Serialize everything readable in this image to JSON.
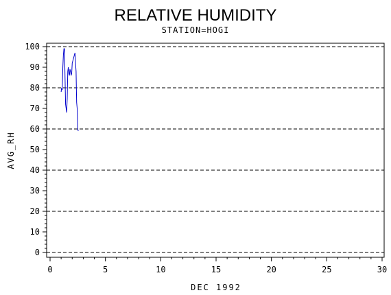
{
  "chart_data": {
    "type": "line",
    "title": "RELATIVE HUMIDITY",
    "subtitle": "STATION=HOGI",
    "xlabel": "DEC 1992",
    "ylabel": "AVG_RH",
    "xlim": [
      0,
      30
    ],
    "ylim": [
      0,
      100
    ],
    "x_ticks": [
      0,
      5,
      10,
      15,
      20,
      25,
      30
    ],
    "y_ticks": [
      0,
      10,
      20,
      30,
      40,
      50,
      60,
      70,
      80,
      90,
      100
    ],
    "grid_lines_y": [
      0,
      20,
      40,
      60,
      80,
      100
    ],
    "grid": "dashed horizontal",
    "line_color": "#0000cc",
    "series": [
      {
        "x": [
          1.0,
          1.05,
          1.1,
          1.15,
          1.2,
          1.25,
          1.3,
          1.35,
          1.4,
          1.45,
          1.5,
          1.55,
          1.6,
          1.65,
          1.7,
          1.75,
          1.8,
          1.85,
          1.9,
          1.95,
          2.0,
          2.05,
          2.1,
          2.15,
          2.2,
          2.25,
          2.3,
          2.35,
          2.4,
          2.45,
          2.5,
          2.55
        ],
        "y": [
          78,
          80,
          79,
          90,
          96,
          99,
          99,
          85,
          72,
          70,
          68,
          75,
          88,
          90,
          87,
          86,
          89,
          88,
          86,
          87,
          92,
          93,
          94,
          95,
          96,
          97,
          92,
          88,
          73,
          70,
          60,
          59
        ]
      }
    ]
  }
}
